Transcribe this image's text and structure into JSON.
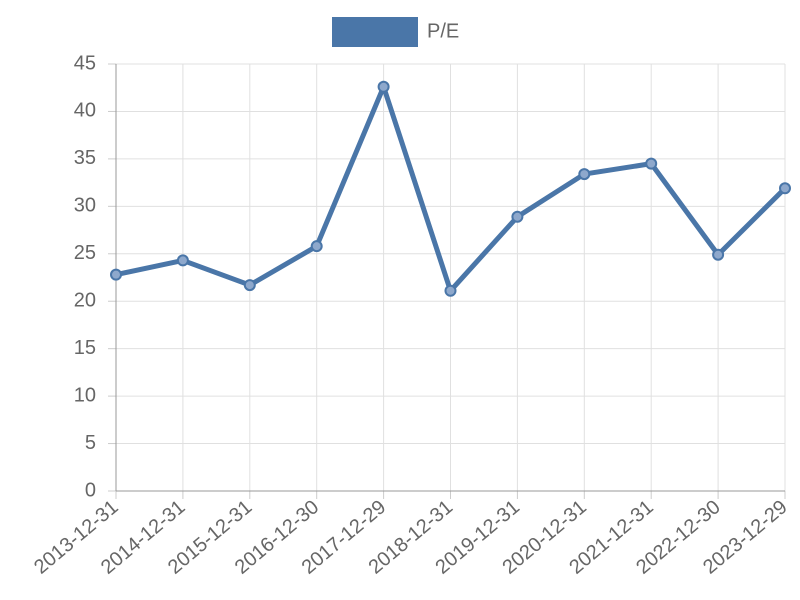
{
  "chart_data": {
    "type": "line",
    "categories": [
      "2013-12-31",
      "2014-12-31",
      "2015-12-31",
      "2016-12-30",
      "2017-12-29",
      "2018-12-31",
      "2019-12-31",
      "2020-12-31",
      "2021-12-31",
      "2022-12-30",
      "2023-12-29"
    ],
    "series": [
      {
        "name": "P/E",
        "color": "#4a76a8",
        "values": [
          22.8,
          24.3,
          21.7,
          25.8,
          42.6,
          21.1,
          28.9,
          33.4,
          34.5,
          24.9,
          31.9
        ]
      }
    ],
    "ylim": [
      0,
      45
    ],
    "yticks": [
      0,
      5,
      10,
      15,
      20,
      25,
      30,
      35,
      40,
      45
    ],
    "grid": true,
    "legend": "top"
  }
}
